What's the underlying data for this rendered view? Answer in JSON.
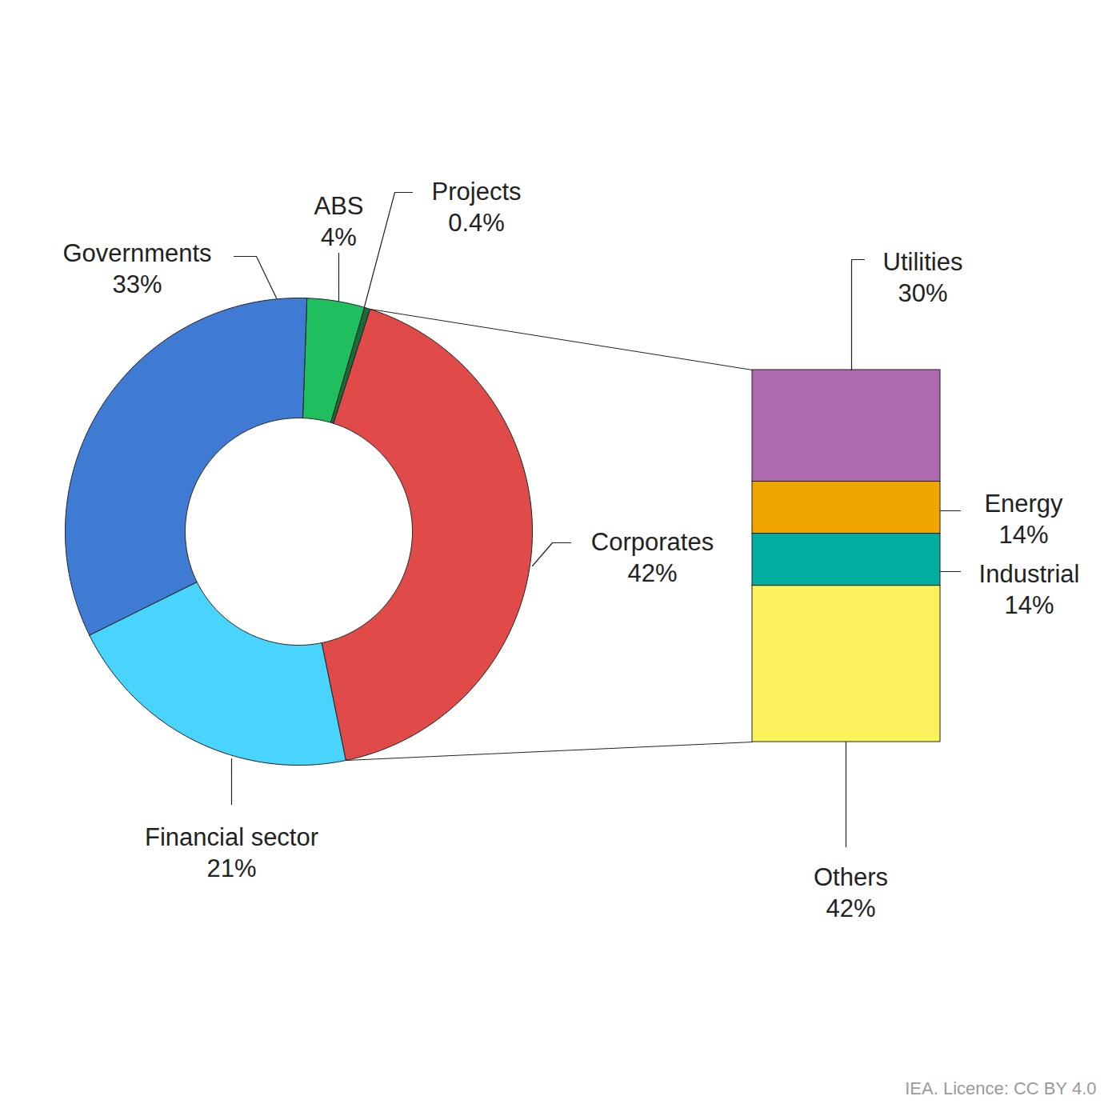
{
  "chart_data": [
    {
      "type": "pie",
      "categories": [
        "ABS",
        "Projects",
        "Corporates",
        "Financial sector",
        "Governments"
      ],
      "values": [
        4,
        0.4,
        42,
        21,
        33
      ],
      "value_labels": [
        "4%",
        "0.4%",
        "42%",
        "21%",
        "33%"
      ],
      "colors": [
        "#1fbf5f",
        "#1b6b3a",
        "#e04a48",
        "#48d4fc",
        "#3f7bd3"
      ],
      "data_labels": true,
      "caption": "IEA. Licence: CC BY 4.0"
    },
    {
      "type": "bar",
      "stacked": true,
      "categories": [
        "Utilities",
        "Energy",
        "Industrial",
        "Others"
      ],
      "values": [
        30,
        14,
        14,
        42
      ],
      "value_labels": [
        "30%",
        "14%",
        "14%",
        "42%"
      ],
      "colors": [
        "#ae6aae",
        "#f0a500",
        "#00ad9f",
        "#fbf25e"
      ],
      "data_labels": true
    }
  ]
}
